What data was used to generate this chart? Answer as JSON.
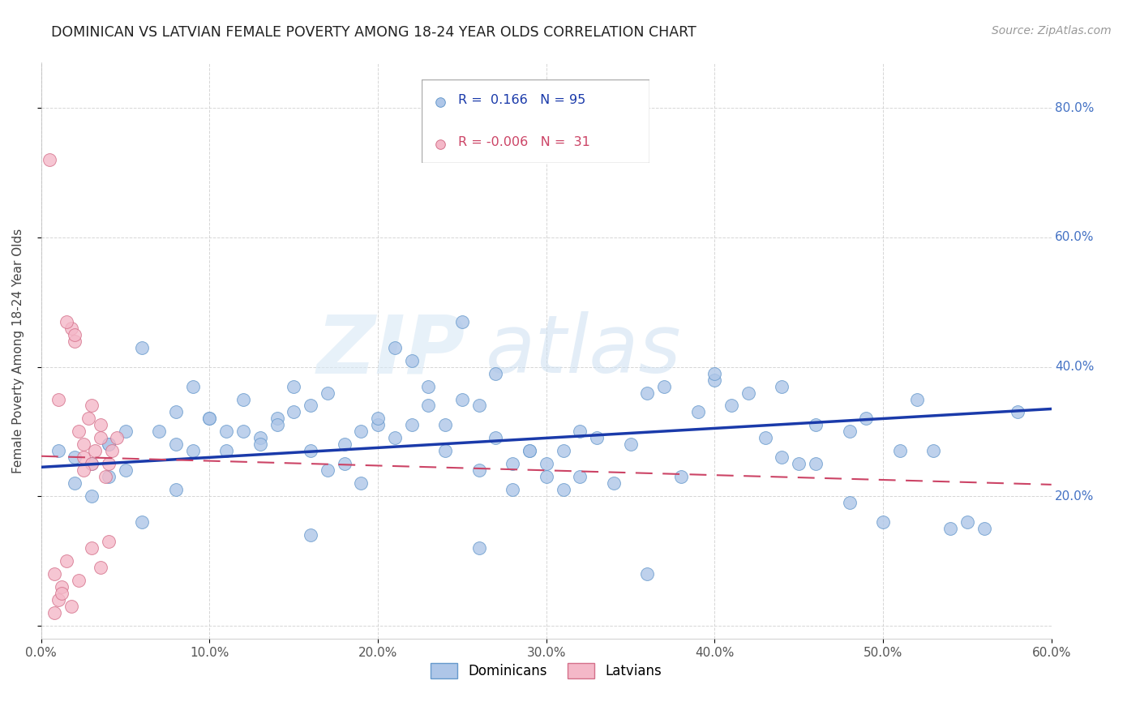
{
  "title": "DOMINICAN VS LATVIAN FEMALE POVERTY AMONG 18-24 YEAR OLDS CORRELATION CHART",
  "source": "Source: ZipAtlas.com",
  "ylabel": "Female Poverty Among 18-24 Year Olds",
  "xlim": [
    0.0,
    0.6
  ],
  "ylim": [
    -0.02,
    0.87
  ],
  "xticks": [
    0.0,
    0.1,
    0.2,
    0.3,
    0.4,
    0.5,
    0.6
  ],
  "yticks": [
    0.0,
    0.2,
    0.4,
    0.6,
    0.8
  ],
  "dominican_color": "#aec6e8",
  "dominican_edge": "#6699cc",
  "latvian_color": "#f4b8c8",
  "latvian_edge": "#d4708a",
  "r_dominican": 0.166,
  "n_dominican": 95,
  "r_latvian": -0.006,
  "n_latvian": 31,
  "trend_dominican_color": "#1a3aaa",
  "trend_latvian_color": "#cc4466",
  "dom_trend_y0": 0.245,
  "dom_trend_y1": 0.335,
  "lat_trend_y0": 0.262,
  "lat_trend_y1": 0.218,
  "dominican_x": [
    0.02,
    0.04,
    0.02,
    0.05,
    0.03,
    0.01,
    0.03,
    0.04,
    0.05,
    0.04,
    0.06,
    0.08,
    0.07,
    0.09,
    0.1,
    0.08,
    0.11,
    0.09,
    0.12,
    0.1,
    0.13,
    0.11,
    0.14,
    0.12,
    0.15,
    0.13,
    0.16,
    0.14,
    0.17,
    0.15,
    0.18,
    0.16,
    0.19,
    0.17,
    0.2,
    0.18,
    0.21,
    0.19,
    0.22,
    0.2,
    0.23,
    0.21,
    0.24,
    0.22,
    0.25,
    0.23,
    0.26,
    0.24,
    0.27,
    0.25,
    0.28,
    0.26,
    0.29,
    0.27,
    0.3,
    0.28,
    0.31,
    0.29,
    0.32,
    0.3,
    0.33,
    0.31,
    0.34,
    0.32,
    0.35,
    0.37,
    0.38,
    0.4,
    0.41,
    0.42,
    0.43,
    0.44,
    0.45,
    0.46,
    0.48,
    0.49,
    0.5,
    0.52,
    0.53,
    0.55,
    0.36,
    0.39,
    0.4,
    0.44,
    0.46,
    0.48,
    0.51,
    0.54,
    0.56,
    0.58,
    0.06,
    0.08,
    0.16,
    0.26,
    0.36
  ],
  "dominican_y": [
    0.26,
    0.28,
    0.22,
    0.24,
    0.2,
    0.27,
    0.25,
    0.23,
    0.3,
    0.28,
    0.43,
    0.33,
    0.3,
    0.37,
    0.32,
    0.28,
    0.3,
    0.27,
    0.35,
    0.32,
    0.29,
    0.27,
    0.32,
    0.3,
    0.37,
    0.28,
    0.34,
    0.31,
    0.36,
    0.33,
    0.25,
    0.27,
    0.22,
    0.24,
    0.31,
    0.28,
    0.43,
    0.3,
    0.41,
    0.32,
    0.34,
    0.29,
    0.27,
    0.31,
    0.47,
    0.37,
    0.34,
    0.31,
    0.39,
    0.35,
    0.21,
    0.24,
    0.27,
    0.29,
    0.23,
    0.25,
    0.21,
    0.27,
    0.23,
    0.25,
    0.29,
    0.27,
    0.22,
    0.3,
    0.28,
    0.37,
    0.23,
    0.38,
    0.34,
    0.36,
    0.29,
    0.37,
    0.25,
    0.31,
    0.19,
    0.32,
    0.16,
    0.35,
    0.27,
    0.16,
    0.36,
    0.33,
    0.39,
    0.26,
    0.25,
    0.3,
    0.27,
    0.15,
    0.15,
    0.33,
    0.16,
    0.21,
    0.14,
    0.12,
    0.08
  ],
  "latvian_x": [
    0.005,
    0.008,
    0.01,
    0.012,
    0.015,
    0.018,
    0.02,
    0.022,
    0.025,
    0.025,
    0.028,
    0.03,
    0.03,
    0.032,
    0.035,
    0.035,
    0.038,
    0.04,
    0.04,
    0.042,
    0.045,
    0.01,
    0.015,
    0.02,
    0.025,
    0.008,
    0.012,
    0.018,
    0.022,
    0.03,
    0.035
  ],
  "latvian_y": [
    0.72,
    0.02,
    0.04,
    0.06,
    0.1,
    0.46,
    0.44,
    0.3,
    0.28,
    0.26,
    0.32,
    0.34,
    0.25,
    0.27,
    0.29,
    0.31,
    0.23,
    0.25,
    0.13,
    0.27,
    0.29,
    0.35,
    0.47,
    0.45,
    0.24,
    0.08,
    0.05,
    0.03,
    0.07,
    0.12,
    0.09
  ]
}
